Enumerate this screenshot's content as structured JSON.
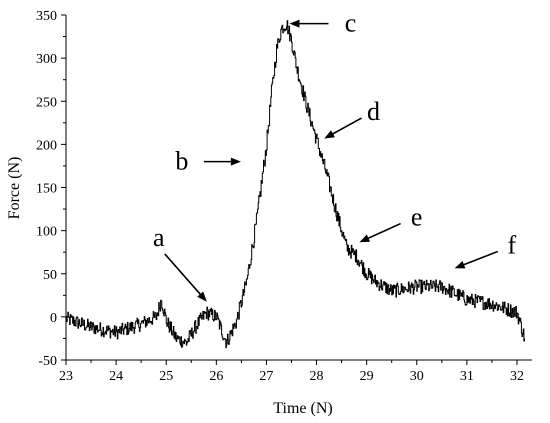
{
  "chart_data": {
    "type": "line",
    "xlabel": "Time (N)",
    "ylabel": "Force (N)",
    "xlim": [
      23,
      32.3
    ],
    "ylim": [
      -50,
      350
    ],
    "x_ticks": [
      23,
      24,
      25,
      26,
      27,
      28,
      29,
      30,
      31,
      32
    ],
    "y_ticks": [
      -50,
      0,
      50,
      100,
      150,
      200,
      250,
      300,
      350
    ],
    "grid": false,
    "legend": "none",
    "series": [
      {
        "color": "#000000",
        "x": [
          23.0,
          23.5,
          24.0,
          24.5,
          24.8,
          24.9,
          25.0,
          25.2,
          25.4,
          25.6,
          25.8,
          26.0,
          26.2,
          26.4,
          26.6,
          26.8,
          27.0,
          27.1,
          27.2,
          27.3,
          27.4,
          27.5,
          27.6,
          27.8,
          28.0,
          28.2,
          28.4,
          28.6,
          28.8,
          29.0,
          29.2,
          29.5,
          30.0,
          30.5,
          31.0,
          31.5,
          32.0,
          32.15
        ],
        "y": [
          -2,
          -12,
          -18,
          -8,
          0,
          20,
          -5,
          -25,
          -30,
          -10,
          5,
          0,
          -30,
          -5,
          40,
          110,
          200,
          260,
          310,
          335,
          340,
          320,
          290,
          245,
          205,
          165,
          120,
          80,
          70,
          50,
          40,
          30,
          35,
          35,
          20,
          15,
          5,
          -25
        ]
      }
    ],
    "annotations": [
      {
        "label": "a",
        "x": 25.85,
        "y": 15
      },
      {
        "label": "b",
        "x": 26.55,
        "y": 180
      },
      {
        "label": "c",
        "x": 27.4,
        "y": 340
      },
      {
        "label": "d",
        "x": 28.1,
        "y": 205
      },
      {
        "label": "e",
        "x": 28.8,
        "y": 85
      },
      {
        "label": "f",
        "x": 30.7,
        "y": 55
      }
    ]
  }
}
